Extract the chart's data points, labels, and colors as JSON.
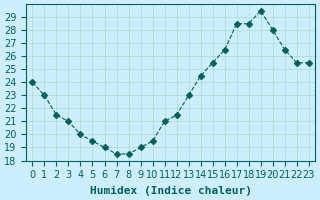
{
  "x": [
    0,
    1,
    2,
    3,
    4,
    5,
    6,
    7,
    8,
    9,
    10,
    11,
    12,
    13,
    14,
    15,
    16,
    17,
    18,
    19,
    20,
    21,
    22,
    23
  ],
  "y": [
    24,
    23,
    21.5,
    21,
    20,
    19.5,
    19,
    18.5,
    18.5,
    19,
    19.5,
    21,
    21.5,
    23,
    24.5,
    25.5,
    26.5,
    28.5,
    28.5,
    29.5,
    28,
    26.5,
    25.5,
    25.5
  ],
  "line_color": "#006060",
  "marker": "D",
  "marker_size": 3,
  "bg_color": "#cceeff",
  "grid_color": "#aaddcc",
  "xlabel": "Humidex (Indice chaleur)",
  "xlabel_fontsize": 8,
  "tick_fontsize": 7,
  "ylim": [
    18,
    30
  ],
  "yticks": [
    18,
    19,
    20,
    21,
    22,
    23,
    24,
    25,
    26,
    27,
    28,
    29
  ],
  "xticks": [
    0,
    1,
    2,
    3,
    4,
    5,
    6,
    7,
    8,
    9,
    10,
    11,
    12,
    13,
    14,
    15,
    16,
    17,
    18,
    19,
    20,
    21,
    22,
    23
  ],
  "line_width": 0.8
}
